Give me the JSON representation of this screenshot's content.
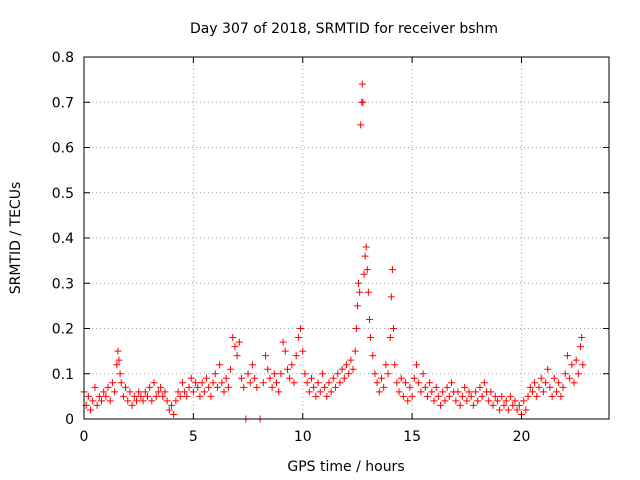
{
  "chart_data": {
    "type": "scatter",
    "title": "Day 307 of 2018, SRMTID for receiver bshm",
    "xlabel": "GPS time / hours",
    "ylabel": "SRMTID / TECUs",
    "xlim": [
      0,
      24
    ],
    "ylim": [
      0,
      0.8
    ],
    "xticks": [
      0,
      5,
      10,
      15,
      20
    ],
    "xtick_labels": [
      "0",
      "5",
      "10",
      "15",
      "20"
    ],
    "yticks": [
      0,
      0.1,
      0.2,
      0.3,
      0.4,
      0.5,
      0.6,
      0.7,
      0.8
    ],
    "ytick_labels": [
      "0",
      "0.1",
      "0.2",
      "0.3",
      "0.4",
      "0.5",
      "0.6",
      "0.7",
      "0.8"
    ],
    "grid": true,
    "marker": "+",
    "color": "#ff0000",
    "series": [
      {
        "name": "SRMTID",
        "points": [
          [
            0.0,
            0.06
          ],
          [
            0.1,
            0.03
          ],
          [
            0.2,
            0.05
          ],
          [
            0.3,
            0.02
          ],
          [
            0.4,
            0.04
          ],
          [
            0.5,
            0.07
          ],
          [
            0.6,
            0.03
          ],
          [
            0.7,
            0.05
          ],
          [
            0.8,
            0.04
          ],
          [
            0.9,
            0.06
          ],
          [
            1.0,
            0.05
          ],
          [
            1.1,
            0.07
          ],
          [
            1.2,
            0.04
          ],
          [
            1.3,
            0.08
          ],
          [
            1.4,
            0.06
          ],
          [
            1.5,
            0.12
          ],
          [
            1.55,
            0.15
          ],
          [
            1.6,
            0.13
          ],
          [
            1.65,
            0.1
          ],
          [
            1.7,
            0.08
          ],
          [
            1.8,
            0.05
          ],
          [
            1.9,
            0.07
          ],
          [
            2.0,
            0.04
          ],
          [
            2.1,
            0.06
          ],
          [
            2.2,
            0.03
          ],
          [
            2.3,
            0.05
          ],
          [
            2.4,
            0.04
          ],
          [
            2.5,
            0.06
          ],
          [
            2.6,
            0.05
          ],
          [
            2.7,
            0.04
          ],
          [
            2.8,
            0.06
          ],
          [
            2.9,
            0.05
          ],
          [
            3.0,
            0.07
          ],
          [
            3.1,
            0.04
          ],
          [
            3.2,
            0.08
          ],
          [
            3.3,
            0.05
          ],
          [
            3.4,
            0.06
          ],
          [
            3.5,
            0.07
          ],
          [
            3.6,
            0.05
          ],
          [
            3.7,
            0.06
          ],
          [
            3.8,
            0.04
          ],
          [
            3.9,
            0.02
          ],
          [
            4.0,
            0.03
          ],
          [
            4.1,
            0.01
          ],
          [
            4.2,
            0.04
          ],
          [
            4.3,
            0.06
          ],
          [
            4.4,
            0.05
          ],
          [
            4.5,
            0.08
          ],
          [
            4.6,
            0.06
          ],
          [
            4.7,
            0.05
          ],
          [
            4.8,
            0.07
          ],
          [
            4.9,
            0.09
          ],
          [
            5.0,
            0.06
          ],
          [
            5.1,
            0.08
          ],
          [
            5.2,
            0.07
          ],
          [
            5.3,
            0.05
          ],
          [
            5.4,
            0.08
          ],
          [
            5.5,
            0.06
          ],
          [
            5.6,
            0.09
          ],
          [
            5.7,
            0.07
          ],
          [
            5.8,
            0.05
          ],
          [
            5.9,
            0.08
          ],
          [
            6.0,
            0.1
          ],
          [
            6.1,
            0.07
          ],
          [
            6.2,
            0.12
          ],
          [
            6.3,
            0.08
          ],
          [
            6.4,
            0.06
          ],
          [
            6.5,
            0.09
          ],
          [
            6.6,
            0.07
          ],
          [
            6.7,
            0.11
          ],
          [
            6.8,
            0.18
          ],
          [
            6.9,
            0.16
          ],
          [
            7.0,
            0.14
          ],
          [
            7.1,
            0.17
          ],
          [
            7.2,
            0.09
          ],
          [
            7.3,
            0.07
          ],
          [
            7.4,
            0.0
          ],
          [
            7.5,
            0.1
          ],
          [
            7.6,
            0.08
          ],
          [
            7.7,
            0.12
          ],
          [
            7.8,
            0.09
          ],
          [
            7.9,
            0.07
          ],
          [
            8.05,
            0.0
          ],
          [
            8.2,
            0.08
          ],
          [
            8.3,
            0.14
          ],
          [
            8.4,
            0.11
          ],
          [
            8.5,
            0.09
          ],
          [
            8.6,
            0.07
          ],
          [
            8.7,
            0.1
          ],
          [
            8.8,
            0.08
          ],
          [
            8.9,
            0.06
          ],
          [
            9.0,
            0.1
          ],
          [
            9.1,
            0.17
          ],
          [
            9.2,
            0.15
          ],
          [
            9.3,
            0.11
          ],
          [
            9.4,
            0.09
          ],
          [
            9.5,
            0.12
          ],
          [
            9.6,
            0.08
          ],
          [
            9.7,
            0.14
          ],
          [
            9.8,
            0.18
          ],
          [
            9.9,
            0.2
          ],
          [
            10.0,
            0.15
          ],
          [
            10.1,
            0.1
          ],
          [
            10.2,
            0.08
          ],
          [
            10.3,
            0.06
          ],
          [
            10.4,
            0.09
          ],
          [
            10.5,
            0.07
          ],
          [
            10.6,
            0.05
          ],
          [
            10.7,
            0.08
          ],
          [
            10.8,
            0.06
          ],
          [
            10.9,
            0.1
          ],
          [
            11.0,
            0.07
          ],
          [
            11.1,
            0.05
          ],
          [
            11.2,
            0.08
          ],
          [
            11.3,
            0.06
          ],
          [
            11.4,
            0.09
          ],
          [
            11.5,
            0.07
          ],
          [
            11.6,
            0.1
          ],
          [
            11.7,
            0.08
          ],
          [
            11.8,
            0.11
          ],
          [
            11.9,
            0.09
          ],
          [
            12.0,
            0.12
          ],
          [
            12.1,
            0.1
          ],
          [
            12.2,
            0.13
          ],
          [
            12.3,
            0.11
          ],
          [
            12.4,
            0.15
          ],
          [
            12.45,
            0.2
          ],
          [
            12.5,
            0.25
          ],
          [
            12.55,
            0.3
          ],
          [
            12.6,
            0.28
          ],
          [
            12.65,
            0.65
          ],
          [
            12.7,
            0.7
          ],
          [
            12.72,
            0.74
          ],
          [
            12.75,
            0.7
          ],
          [
            12.8,
            0.32
          ],
          [
            12.85,
            0.36
          ],
          [
            12.9,
            0.38
          ],
          [
            12.95,
            0.33
          ],
          [
            13.0,
            0.28
          ],
          [
            13.05,
            0.22
          ],
          [
            13.1,
            0.18
          ],
          [
            13.2,
            0.14
          ],
          [
            13.3,
            0.1
          ],
          [
            13.4,
            0.08
          ],
          [
            13.5,
            0.06
          ],
          [
            13.6,
            0.09
          ],
          [
            13.7,
            0.07
          ],
          [
            13.8,
            0.12
          ],
          [
            13.9,
            0.1
          ],
          [
            14.0,
            0.18
          ],
          [
            14.05,
            0.27
          ],
          [
            14.1,
            0.33
          ],
          [
            14.15,
            0.2
          ],
          [
            14.2,
            0.12
          ],
          [
            14.3,
            0.08
          ],
          [
            14.4,
            0.06
          ],
          [
            14.5,
            0.09
          ],
          [
            14.6,
            0.05
          ],
          [
            14.7,
            0.08
          ],
          [
            14.8,
            0.04
          ],
          [
            14.9,
            0.07
          ],
          [
            15.0,
            0.05
          ],
          [
            15.1,
            0.09
          ],
          [
            15.2,
            0.12
          ],
          [
            15.3,
            0.08
          ],
          [
            15.4,
            0.06
          ],
          [
            15.5,
            0.1
          ],
          [
            15.6,
            0.07
          ],
          [
            15.7,
            0.05
          ],
          [
            15.8,
            0.08
          ],
          [
            15.9,
            0.06
          ],
          [
            16.0,
            0.04
          ],
          [
            16.1,
            0.07
          ],
          [
            16.2,
            0.05
          ],
          [
            16.3,
            0.03
          ],
          [
            16.4,
            0.06
          ],
          [
            16.5,
            0.04
          ],
          [
            16.6,
            0.07
          ],
          [
            16.7,
            0.05
          ],
          [
            16.8,
            0.08
          ],
          [
            16.9,
            0.06
          ],
          [
            17.0,
            0.04
          ],
          [
            17.1,
            0.06
          ],
          [
            17.2,
            0.03
          ],
          [
            17.3,
            0.05
          ],
          [
            17.4,
            0.07
          ],
          [
            17.5,
            0.04
          ],
          [
            17.6,
            0.06
          ],
          [
            17.7,
            0.05
          ],
          [
            17.8,
            0.03
          ],
          [
            17.9,
            0.06
          ],
          [
            18.0,
            0.04
          ],
          [
            18.1,
            0.07
          ],
          [
            18.2,
            0.05
          ],
          [
            18.3,
            0.08
          ],
          [
            18.4,
            0.06
          ],
          [
            18.5,
            0.04
          ],
          [
            18.6,
            0.06
          ],
          [
            18.7,
            0.03
          ],
          [
            18.8,
            0.05
          ],
          [
            18.9,
            0.04
          ],
          [
            19.0,
            0.02
          ],
          [
            19.1,
            0.05
          ],
          [
            19.2,
            0.03
          ],
          [
            19.3,
            0.04
          ],
          [
            19.4,
            0.02
          ],
          [
            19.5,
            0.05
          ],
          [
            19.6,
            0.03
          ],
          [
            19.7,
            0.04
          ],
          [
            19.8,
            0.02
          ],
          [
            19.9,
            0.03
          ],
          [
            20.0,
            0.01
          ],
          [
            20.1,
            0.04
          ],
          [
            20.2,
            0.02
          ],
          [
            20.3,
            0.05
          ],
          [
            20.4,
            0.07
          ],
          [
            20.5,
            0.06
          ],
          [
            20.6,
            0.08
          ],
          [
            20.7,
            0.05
          ],
          [
            20.8,
            0.07
          ],
          [
            20.9,
            0.09
          ],
          [
            21.0,
            0.06
          ],
          [
            21.1,
            0.08
          ],
          [
            21.2,
            0.11
          ],
          [
            21.3,
            0.07
          ],
          [
            21.4,
            0.05
          ],
          [
            21.5,
            0.09
          ],
          [
            21.6,
            0.06
          ],
          [
            21.7,
            0.08
          ],
          [
            21.8,
            0.05
          ],
          [
            21.9,
            0.07
          ],
          [
            22.0,
            0.1
          ],
          [
            22.1,
            0.14
          ],
          [
            22.2,
            0.09
          ],
          [
            22.3,
            0.12
          ],
          [
            22.4,
            0.08
          ],
          [
            22.5,
            0.13
          ],
          [
            22.6,
            0.1
          ],
          [
            22.7,
            0.16
          ],
          [
            22.75,
            0.18
          ],
          [
            22.8,
            0.12
          ]
        ]
      }
    ]
  }
}
